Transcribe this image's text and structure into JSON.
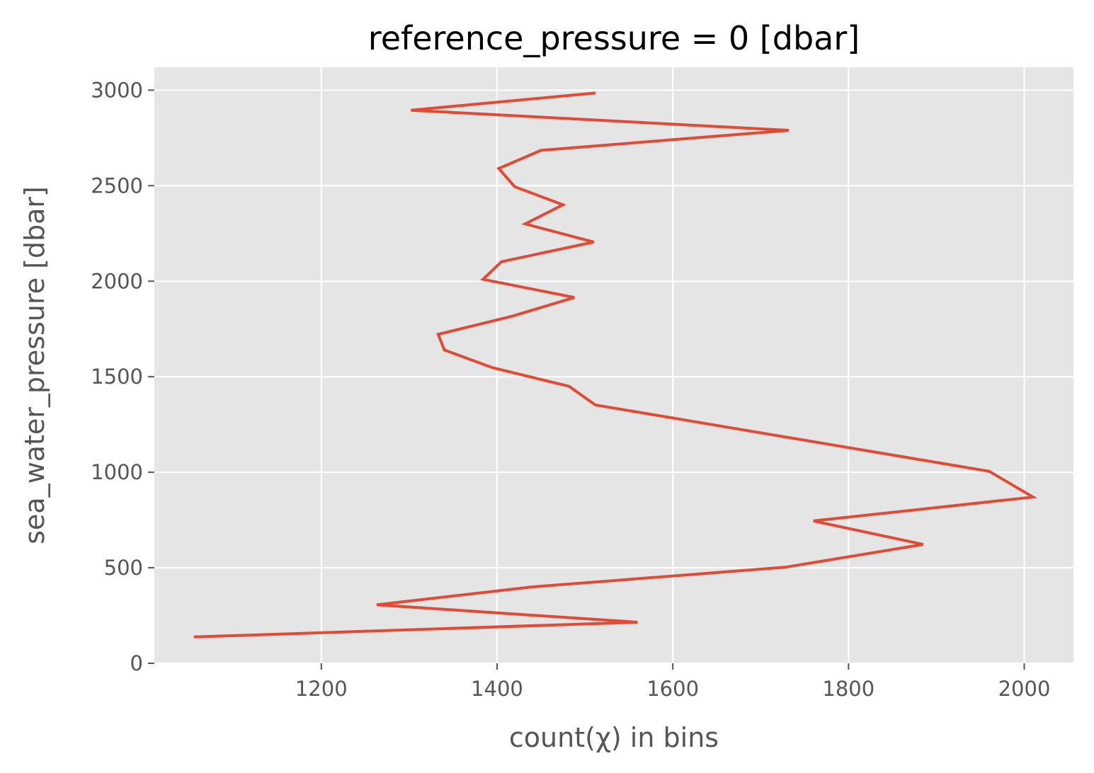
{
  "chart_data": {
    "type": "line",
    "title": "reference_pressure = 0 [dbar]",
    "xlabel": "count(χ) in bins",
    "ylabel": "sea_water_pressure [dbar]",
    "xlim": [
      1010,
      2056
    ],
    "ylim": [
      0,
      3120
    ],
    "xticks": [
      1200,
      1400,
      1600,
      1800,
      2000
    ],
    "xtick_labels": [
      "1200",
      "1400",
      "1600",
      "1800",
      "2000"
    ],
    "yticks": [
      0,
      500,
      1000,
      1500,
      2000,
      2500,
      3000
    ],
    "ytick_labels": [
      "0",
      "500",
      "1000",
      "1500",
      "2000",
      "2500",
      "3000"
    ],
    "grid": true,
    "background": "#e5e5e5",
    "line_color": "#e24a33",
    "series": [
      {
        "points": [
          [
            1055,
            138
          ],
          [
            1560,
            215
          ],
          [
            1263,
            306
          ],
          [
            1440,
            400
          ],
          [
            1728,
            503
          ],
          [
            1885,
            622
          ],
          [
            1760,
            745
          ],
          [
            2010,
            870
          ],
          [
            1960,
            1005
          ],
          [
            1512,
            1352
          ],
          [
            1482,
            1450
          ],
          [
            1395,
            1547
          ],
          [
            1340,
            1640
          ],
          [
            1333,
            1722
          ],
          [
            1418,
            1818
          ],
          [
            1488,
            1915
          ],
          [
            1384,
            2010
          ],
          [
            1405,
            2102
          ],
          [
            1510,
            2205
          ],
          [
            1432,
            2300
          ],
          [
            1475,
            2400
          ],
          [
            1420,
            2495
          ],
          [
            1402,
            2590
          ],
          [
            1450,
            2685
          ],
          [
            1732,
            2790
          ],
          [
            1302,
            2895
          ],
          [
            1512,
            2985
          ]
        ]
      }
    ]
  }
}
